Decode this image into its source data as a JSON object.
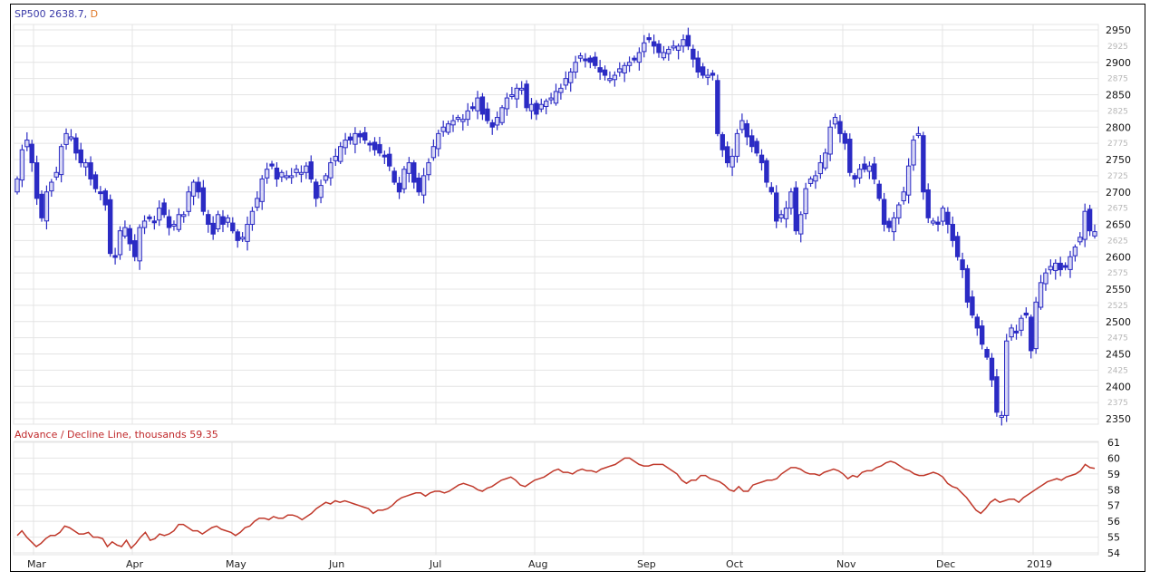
{
  "header": {
    "symbol": "SP500",
    "last_value": "2638.7,",
    "period": "D"
  },
  "ad_panel": {
    "title": "Advance / Decline Line, thousands 59.35"
  },
  "colors": {
    "candle": "#2b2bc4",
    "candle_fill_up": "#d8d8f4",
    "ad_line": "#c0392b",
    "grid": "#e4e4e4",
    "frame": "#000000"
  },
  "chart_data": [
    {
      "type": "candlestick",
      "title": "SP500 2638.7, D",
      "xlabel": "",
      "ylabel": "",
      "ylim": [
        2340,
        2960
      ],
      "y_major_ticks": [
        2950,
        2900,
        2850,
        2800,
        2750,
        2700,
        2650,
        2600,
        2550,
        2500,
        2450,
        2400,
        2350
      ],
      "y_minor_ticks": [
        2925,
        2875,
        2825,
        2775,
        2725,
        2675,
        2625,
        2575,
        2525,
        2475,
        2425,
        2375
      ],
      "x_tick_labels": [
        "Mar",
        "Apr",
        "May",
        "Jun",
        "Jul",
        "Aug",
        "Sep",
        "Oct",
        "Nov",
        "Dec",
        "2019"
      ],
      "grid": true,
      "last_close": 2638.7,
      "closes_approx": [
        2720,
        2765,
        2780,
        2745,
        2690,
        2660,
        2700,
        2715,
        2730,
        2770,
        2790,
        2785,
        2760,
        2745,
        2745,
        2720,
        2705,
        2700,
        2680,
        2605,
        2600,
        2640,
        2645,
        2620,
        2600,
        2645,
        2655,
        2660,
        2655,
        2675,
        2665,
        2645,
        2650,
        2665,
        2665,
        2700,
        2715,
        2700,
        2670,
        2650,
        2635,
        2665,
        2650,
        2660,
        2640,
        2625,
        2630,
        2650,
        2670,
        2690,
        2720,
        2735,
        2740,
        2720,
        2730,
        2725,
        2725,
        2735,
        2730,
        2740,
        2720,
        2690,
        2710,
        2725,
        2745,
        2755,
        2770,
        2780,
        2780,
        2790,
        2785,
        2780,
        2775,
        2765,
        2760,
        2755,
        2740,
        2715,
        2700,
        2735,
        2745,
        2715,
        2700,
        2725,
        2745,
        2770,
        2790,
        2800,
        2805,
        2810,
        2815,
        2812,
        2825,
        2830,
        2845,
        2820,
        2810,
        2800,
        2815,
        2830,
        2845,
        2850,
        2860,
        2860,
        2830,
        2835,
        2820,
        2835,
        2840,
        2845,
        2855,
        2860,
        2875,
        2885,
        2900,
        2910,
        2905,
        2900,
        2895,
        2885,
        2880,
        2875,
        2880,
        2890,
        2895,
        2900,
        2905,
        2915,
        2930,
        2935,
        2925,
        2915,
        2915,
        2920,
        2925,
        2925,
        2935,
        2925,
        2905,
        2885,
        2880,
        2880,
        2880,
        2790,
        2765,
        2745,
        2755,
        2790,
        2810,
        2785,
        2770,
        2760,
        2745,
        2715,
        2700,
        2655,
        2665,
        2675,
        2700,
        2640,
        2665,
        2705,
        2720,
        2725,
        2745,
        2760,
        2800,
        2815,
        2790,
        2775,
        2730,
        2720,
        2735,
        2735,
        2740,
        2720,
        2690,
        2650,
        2645,
        2660,
        2680,
        2700,
        2740,
        2780,
        2790,
        2700,
        2660,
        2655,
        2650,
        2675,
        2650,
        2625,
        2600,
        2580,
        2530,
        2510,
        2490,
        2465,
        2445,
        2410,
        2360,
        2355,
        2470,
        2490,
        2485,
        2505,
        2510,
        2455,
        2530,
        2560,
        2575,
        2585,
        2590,
        2580,
        2585,
        2600,
        2615,
        2630,
        2670,
        2640,
        2638.7
      ]
    },
    {
      "type": "line",
      "title": "Advance / Decline Line, thousands 59.35",
      "xlabel": "",
      "ylabel": "",
      "ylim": [
        54,
        61
      ],
      "y_ticks": [
        61,
        60,
        59,
        58,
        57,
        56,
        55,
        54
      ],
      "x_tick_labels": [
        "Mar",
        "Apr",
        "May",
        "Jun",
        "Jul",
        "Aug",
        "Sep",
        "Oct",
        "Nov",
        "Dec",
        "2019"
      ],
      "grid": true,
      "last_value": 59.35,
      "values_approx": [
        55.1,
        55.4,
        55.0,
        54.7,
        54.4,
        54.6,
        54.9,
        55.1,
        55.1,
        55.3,
        55.7,
        55.6,
        55.4,
        55.2,
        55.2,
        55.3,
        55.0,
        55.0,
        54.9,
        54.4,
        54.7,
        54.5,
        54.4,
        54.8,
        54.3,
        54.6,
        55.0,
        55.3,
        54.8,
        54.9,
        55.2,
        55.1,
        55.2,
        55.4,
        55.8,
        55.8,
        55.6,
        55.4,
        55.4,
        55.2,
        55.4,
        55.6,
        55.7,
        55.5,
        55.4,
        55.3,
        55.1,
        55.3,
        55.6,
        55.7,
        56.0,
        56.2,
        56.2,
        56.1,
        56.3,
        56.2,
        56.2,
        56.4,
        56.4,
        56.3,
        56.1,
        56.3,
        56.5,
        56.8,
        57.0,
        57.2,
        57.1,
        57.3,
        57.2,
        57.3,
        57.2,
        57.1,
        57.0,
        56.9,
        56.8,
        56.5,
        56.7,
        56.7,
        56.8,
        57.0,
        57.3,
        57.5,
        57.6,
        57.7,
        57.8,
        57.8,
        57.6,
        57.8,
        57.9,
        57.9,
        57.8,
        57.9,
        58.1,
        58.3,
        58.4,
        58.3,
        58.2,
        58.0,
        57.9,
        58.1,
        58.2,
        58.4,
        58.6,
        58.7,
        58.8,
        58.6,
        58.3,
        58.2,
        58.4,
        58.6,
        58.7,
        58.8,
        59.0,
        59.2,
        59.3,
        59.1,
        59.1,
        59.0,
        59.2,
        59.3,
        59.2,
        59.2,
        59.1,
        59.3,
        59.4,
        59.5,
        59.6,
        59.8,
        60.0,
        60.0,
        59.8,
        59.6,
        59.5,
        59.5,
        59.6,
        59.6,
        59.6,
        59.4,
        59.2,
        59.0,
        58.6,
        58.4,
        58.6,
        58.6,
        58.9,
        58.9,
        58.7,
        58.6,
        58.5,
        58.3,
        58.0,
        57.9,
        58.2,
        57.9,
        57.9,
        58.3,
        58.4,
        58.5,
        58.6,
        58.6,
        58.7,
        59.0,
        59.2,
        59.4,
        59.4,
        59.3,
        59.1,
        59.0,
        59.0,
        58.9,
        59.1,
        59.2,
        59.3,
        59.2,
        59.0,
        58.7,
        58.9,
        58.8,
        59.1,
        59.2,
        59.2,
        59.4,
        59.5,
        59.7,
        59.8,
        59.7,
        59.5,
        59.3,
        59.2,
        59.0,
        58.9,
        58.9,
        59.0,
        59.1,
        59.0,
        58.8,
        58.4,
        58.2,
        58.1,
        57.8,
        57.5,
        57.1,
        56.7,
        56.5,
        56.8,
        57.2,
        57.4,
        57.2,
        57.3,
        57.4,
        57.4,
        57.2,
        57.5,
        57.7,
        57.9,
        58.1,
        58.3,
        58.5,
        58.6,
        58.7,
        58.6,
        58.8,
        58.9,
        59.0,
        59.2,
        59.6,
        59.4,
        59.35
      ]
    }
  ]
}
